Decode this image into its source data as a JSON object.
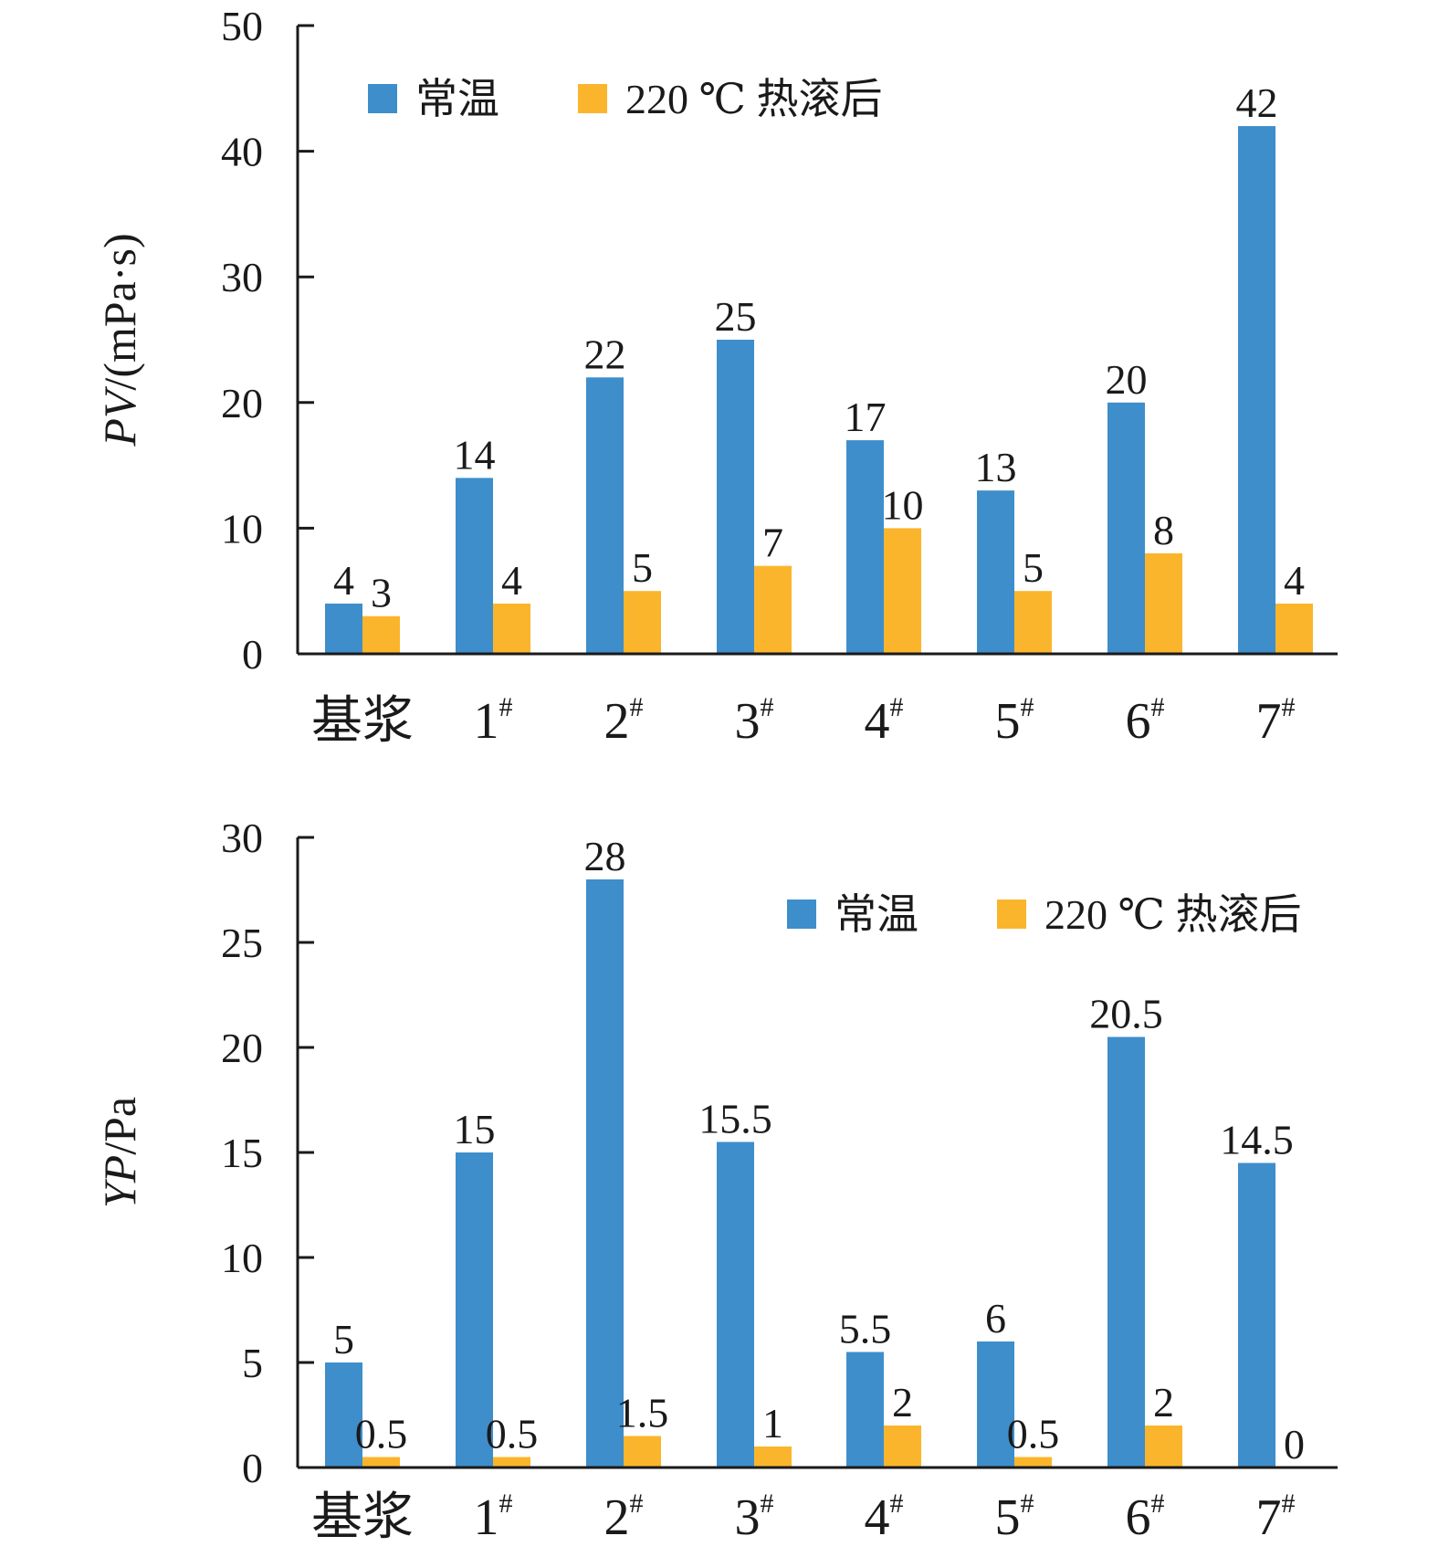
{
  "colors": {
    "series_1": "#3e8ecb",
    "series_2": "#fbb52c",
    "axis": "#1a1a1a"
  },
  "chart_data": [
    {
      "type": "bar",
      "ylabel_italic": "PV",
      "ylabel_rest": "/(mPa·s)",
      "ylim": [
        0,
        50
      ],
      "yticks": [
        "0",
        "10",
        "20",
        "30",
        "40",
        "50"
      ],
      "legend_placement": "top-left",
      "categories": [
        {
          "base": "基浆",
          "sup": ""
        },
        {
          "base": "1",
          "sup": "#"
        },
        {
          "base": "2",
          "sup": "#"
        },
        {
          "base": "3",
          "sup": "#"
        },
        {
          "base": "4",
          "sup": "#"
        },
        {
          "base": "5",
          "sup": "#"
        },
        {
          "base": "6",
          "sup": "#"
        },
        {
          "base": "7",
          "sup": "#"
        }
      ],
      "series": [
        {
          "name": "常温",
          "values": [
            4,
            14,
            22,
            25,
            17,
            13,
            20,
            42
          ],
          "labels": [
            "4",
            "14",
            "22",
            "25",
            "17",
            "13",
            "20",
            "42"
          ]
        },
        {
          "name": "220 ℃ 热滚后",
          "values": [
            3,
            4,
            5,
            7,
            10,
            5,
            8,
            4
          ],
          "labels": [
            "3",
            "4",
            "5",
            "7",
            "10",
            "5",
            "8",
            "4"
          ]
        }
      ]
    },
    {
      "type": "bar",
      "ylabel_italic": "YP",
      "ylabel_rest": "/Pa",
      "ylim": [
        0,
        30
      ],
      "yticks": [
        "0",
        "5",
        "10",
        "15",
        "20",
        "25",
        "30"
      ],
      "legend_placement": "top-right",
      "categories": [
        {
          "base": "基浆",
          "sup": ""
        },
        {
          "base": "1",
          "sup": "#"
        },
        {
          "base": "2",
          "sup": "#"
        },
        {
          "base": "3",
          "sup": "#"
        },
        {
          "base": "4",
          "sup": "#"
        },
        {
          "base": "5",
          "sup": "#"
        },
        {
          "base": "6",
          "sup": "#"
        },
        {
          "base": "7",
          "sup": "#"
        }
      ],
      "series": [
        {
          "name": "常温",
          "values": [
            5,
            15,
            28,
            15.5,
            5.5,
            6,
            20.5,
            14.5
          ],
          "labels": [
            "5",
            "15",
            "28",
            "15.5",
            "5.5",
            "6",
            "20.5",
            "14.5"
          ]
        },
        {
          "name": "220 ℃ 热滚后",
          "values": [
            0.5,
            0.5,
            1.5,
            1,
            2,
            0.5,
            2,
            0
          ],
          "labels": [
            "0.5",
            "0.5",
            "1.5",
            "1",
            "2",
            "0.5",
            "2",
            "0"
          ]
        }
      ]
    }
  ]
}
